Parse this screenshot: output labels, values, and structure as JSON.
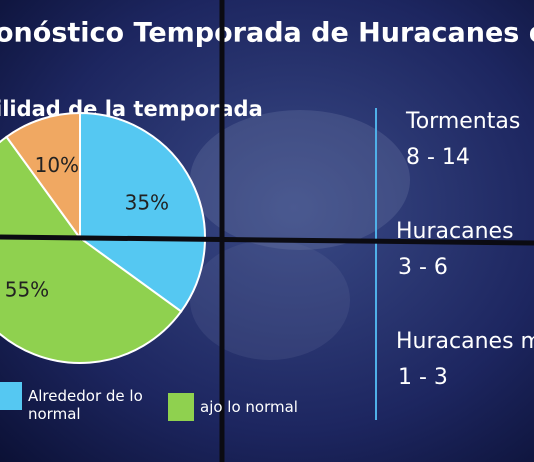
{
  "chart_data": {
    "type": "pie",
    "title": "onóstico Temporada de Huracanes del A",
    "subtitle": "ilidad de la temporada",
    "categories": [
      "Alrededor de lo normal",
      "ajo lo normal",
      null
    ],
    "values": [
      35,
      55,
      10
    ],
    "value_labels": [
      "35%",
      "55%",
      "10%"
    ],
    "colors": [
      "#55c8f2",
      "#8fd14f",
      "#f0a862"
    ]
  },
  "stats": [
    {
      "label": "Tormentas",
      "value": "8 - 14"
    },
    {
      "label": "Huracanes",
      "value": "3 - 6"
    },
    {
      "label": "Huracanes m",
      "value": "1 - 3"
    }
  ]
}
